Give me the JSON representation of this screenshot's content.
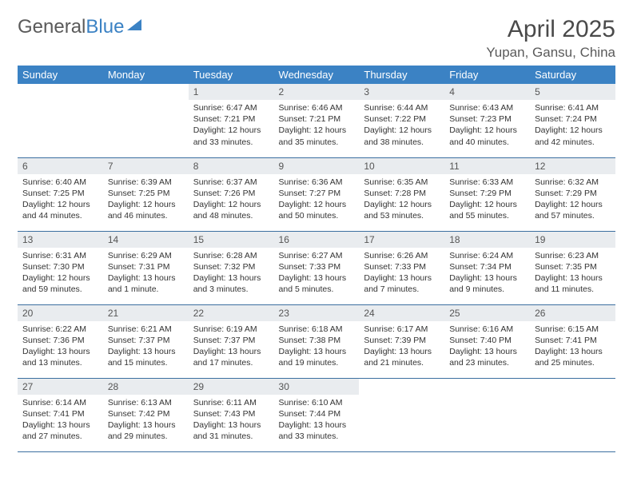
{
  "logo": {
    "text1": "General",
    "text2": "Blue"
  },
  "title": "April 2025",
  "location": "Yupan, Gansu, China",
  "colors": {
    "header_bg": "#3b82c4",
    "header_text": "#ffffff",
    "daynum_bg": "#e9ecef",
    "row_border": "#3b6fa0",
    "title_color": "#4a4a4a",
    "body_text": "#333333"
  },
  "fonts": {
    "title_size": 30,
    "location_size": 17,
    "th_size": 13,
    "daynum_size": 12,
    "body_size": 10.5
  },
  "weekdays": [
    "Sunday",
    "Monday",
    "Tuesday",
    "Wednesday",
    "Thursday",
    "Friday",
    "Saturday"
  ],
  "weeks": [
    [
      null,
      null,
      {
        "n": "1",
        "sr": "6:47 AM",
        "ss": "7:21 PM",
        "dl": "12 hours and 33 minutes."
      },
      {
        "n": "2",
        "sr": "6:46 AM",
        "ss": "7:21 PM",
        "dl": "12 hours and 35 minutes."
      },
      {
        "n": "3",
        "sr": "6:44 AM",
        "ss": "7:22 PM",
        "dl": "12 hours and 38 minutes."
      },
      {
        "n": "4",
        "sr": "6:43 AM",
        "ss": "7:23 PM",
        "dl": "12 hours and 40 minutes."
      },
      {
        "n": "5",
        "sr": "6:41 AM",
        "ss": "7:24 PM",
        "dl": "12 hours and 42 minutes."
      }
    ],
    [
      {
        "n": "6",
        "sr": "6:40 AM",
        "ss": "7:25 PM",
        "dl": "12 hours and 44 minutes."
      },
      {
        "n": "7",
        "sr": "6:39 AM",
        "ss": "7:25 PM",
        "dl": "12 hours and 46 minutes."
      },
      {
        "n": "8",
        "sr": "6:37 AM",
        "ss": "7:26 PM",
        "dl": "12 hours and 48 minutes."
      },
      {
        "n": "9",
        "sr": "6:36 AM",
        "ss": "7:27 PM",
        "dl": "12 hours and 50 minutes."
      },
      {
        "n": "10",
        "sr": "6:35 AM",
        "ss": "7:28 PM",
        "dl": "12 hours and 53 minutes."
      },
      {
        "n": "11",
        "sr": "6:33 AM",
        "ss": "7:29 PM",
        "dl": "12 hours and 55 minutes."
      },
      {
        "n": "12",
        "sr": "6:32 AM",
        "ss": "7:29 PM",
        "dl": "12 hours and 57 minutes."
      }
    ],
    [
      {
        "n": "13",
        "sr": "6:31 AM",
        "ss": "7:30 PM",
        "dl": "12 hours and 59 minutes."
      },
      {
        "n": "14",
        "sr": "6:29 AM",
        "ss": "7:31 PM",
        "dl": "13 hours and 1 minute."
      },
      {
        "n": "15",
        "sr": "6:28 AM",
        "ss": "7:32 PM",
        "dl": "13 hours and 3 minutes."
      },
      {
        "n": "16",
        "sr": "6:27 AM",
        "ss": "7:33 PM",
        "dl": "13 hours and 5 minutes."
      },
      {
        "n": "17",
        "sr": "6:26 AM",
        "ss": "7:33 PM",
        "dl": "13 hours and 7 minutes."
      },
      {
        "n": "18",
        "sr": "6:24 AM",
        "ss": "7:34 PM",
        "dl": "13 hours and 9 minutes."
      },
      {
        "n": "19",
        "sr": "6:23 AM",
        "ss": "7:35 PM",
        "dl": "13 hours and 11 minutes."
      }
    ],
    [
      {
        "n": "20",
        "sr": "6:22 AM",
        "ss": "7:36 PM",
        "dl": "13 hours and 13 minutes."
      },
      {
        "n": "21",
        "sr": "6:21 AM",
        "ss": "7:37 PM",
        "dl": "13 hours and 15 minutes."
      },
      {
        "n": "22",
        "sr": "6:19 AM",
        "ss": "7:37 PM",
        "dl": "13 hours and 17 minutes."
      },
      {
        "n": "23",
        "sr": "6:18 AM",
        "ss": "7:38 PM",
        "dl": "13 hours and 19 minutes."
      },
      {
        "n": "24",
        "sr": "6:17 AM",
        "ss": "7:39 PM",
        "dl": "13 hours and 21 minutes."
      },
      {
        "n": "25",
        "sr": "6:16 AM",
        "ss": "7:40 PM",
        "dl": "13 hours and 23 minutes."
      },
      {
        "n": "26",
        "sr": "6:15 AM",
        "ss": "7:41 PM",
        "dl": "13 hours and 25 minutes."
      }
    ],
    [
      {
        "n": "27",
        "sr": "6:14 AM",
        "ss": "7:41 PM",
        "dl": "13 hours and 27 minutes."
      },
      {
        "n": "28",
        "sr": "6:13 AM",
        "ss": "7:42 PM",
        "dl": "13 hours and 29 minutes."
      },
      {
        "n": "29",
        "sr": "6:11 AM",
        "ss": "7:43 PM",
        "dl": "13 hours and 31 minutes."
      },
      {
        "n": "30",
        "sr": "6:10 AM",
        "ss": "7:44 PM",
        "dl": "13 hours and 33 minutes."
      },
      null,
      null,
      null
    ]
  ],
  "labels": {
    "sunrise": "Sunrise:",
    "sunset": "Sunset:",
    "daylight": "Daylight:"
  }
}
